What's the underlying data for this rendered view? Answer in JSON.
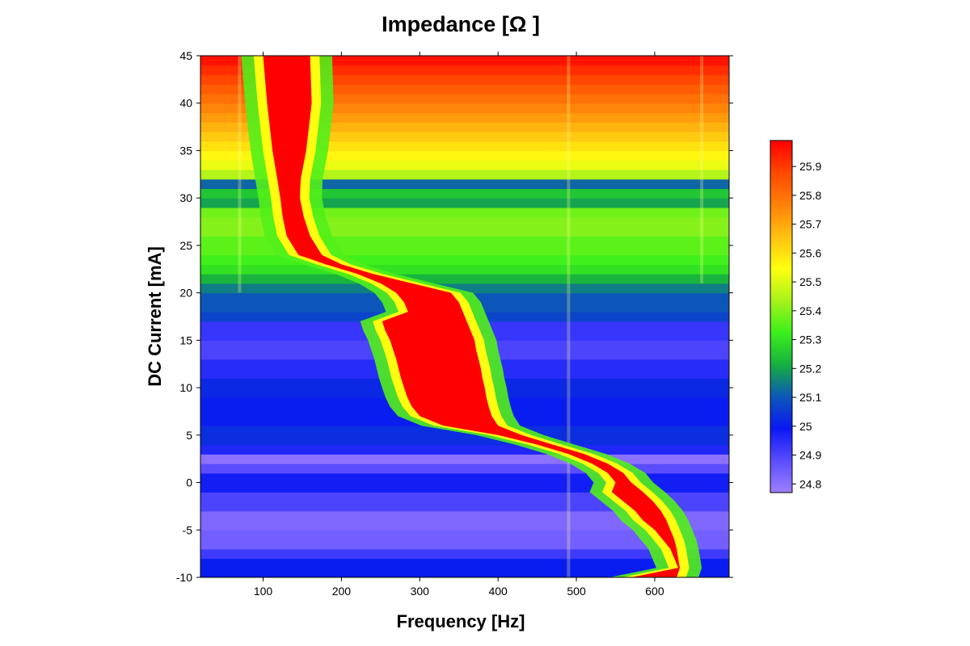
{
  "chart_data": {
    "type": "heatmap",
    "title": "Impedance [Ω ]",
    "xlabel": "Frequency [Hz]",
    "ylabel": "DC Current [mA]",
    "xlim": [
      20,
      695
    ],
    "ylim": [
      -10,
      45
    ],
    "xticks": [
      100,
      200,
      300,
      400,
      500,
      600
    ],
    "yticks": [
      -10,
      -5,
      0,
      5,
      10,
      15,
      20,
      25,
      30,
      35,
      40,
      45
    ],
    "colorbar": {
      "ticks": [
        24.8,
        24.9,
        25,
        25.1,
        25.2,
        25.3,
        25.4,
        25.5,
        25.6,
        25.7,
        25.8,
        25.9
      ],
      "min": 24.77,
      "max": 25.99,
      "colors": [
        "#9f7fff",
        "#5a4dff",
        "#0a18f4",
        "#0c58b8",
        "#16b040",
        "#3af01a",
        "#a8f21a",
        "#ffff10",
        "#ffc010",
        "#ff8008",
        "#ff4800",
        "#ff0000"
      ]
    },
    "background_levels": [
      [
        -10,
        -8,
        25.0
      ],
      [
        -8,
        -7,
        24.92
      ],
      [
        -7,
        -5,
        24.84
      ],
      [
        -5,
        -3,
        24.82
      ],
      [
        -3,
        -1,
        24.9
      ],
      [
        -1,
        1,
        24.98
      ],
      [
        1,
        2,
        24.88
      ],
      [
        2,
        3,
        24.8
      ],
      [
        3,
        4,
        24.96
      ],
      [
        4,
        6,
        25.03
      ],
      [
        6,
        9,
        25.0
      ],
      [
        9,
        11,
        25.02
      ],
      [
        11,
        13,
        24.95
      ],
      [
        13,
        15,
        24.9
      ],
      [
        15,
        17,
        24.93
      ],
      [
        17,
        18,
        25.07
      ],
      [
        18,
        20,
        25.1
      ],
      [
        20,
        21,
        25.15
      ],
      [
        21,
        22,
        25.22
      ],
      [
        22,
        23,
        25.3
      ],
      [
        23,
        24,
        25.33
      ],
      [
        24,
        26,
        25.36
      ],
      [
        26,
        28,
        25.4
      ],
      [
        28,
        29,
        25.38
      ],
      [
        29,
        30,
        25.2
      ],
      [
        30,
        31,
        25.25
      ],
      [
        31,
        32,
        25.12
      ],
      [
        32,
        33,
        25.45
      ],
      [
        33,
        34,
        25.52
      ],
      [
        34,
        35,
        25.56
      ],
      [
        35,
        36,
        25.6
      ],
      [
        36,
        37,
        25.64
      ],
      [
        37,
        38,
        25.68
      ],
      [
        38,
        39,
        25.72
      ],
      [
        39,
        40,
        25.76
      ],
      [
        40,
        41,
        25.8
      ],
      [
        41,
        42,
        25.84
      ],
      [
        42,
        43,
        25.88
      ],
      [
        43,
        44,
        25.92
      ],
      [
        44,
        45,
        25.96
      ]
    ],
    "resonance_ridge": {
      "current": [
        45,
        40,
        35,
        32,
        30,
        28,
        26,
        24,
        23,
        22,
        21,
        20,
        19,
        18,
        17,
        16,
        15,
        14,
        13,
        12,
        11,
        10,
        9,
        8,
        7,
        6,
        5,
        4,
        3,
        2,
        1,
        0,
        -1,
        -2,
        -3,
        -4,
        -5,
        -6,
        -7,
        -8,
        -9,
        -10
      ],
      "left_frequency": [
        100,
        105,
        112,
        118,
        122,
        125,
        130,
        145,
        180,
        220,
        250,
        270,
        280,
        285,
        252,
        256,
        262,
        266,
        270,
        273,
        276,
        280,
        284,
        290,
        300,
        330,
        400,
        450,
        490,
        520,
        540,
        550,
        545,
        560,
        575,
        585,
        600,
        610,
        620,
        625,
        630,
        570
      ],
      "right_frequency": [
        160,
        162,
        155,
        148,
        147,
        152,
        160,
        175,
        200,
        240,
        290,
        340,
        350,
        355,
        360,
        365,
        370,
        372,
        375,
        378,
        380,
        383,
        385,
        388,
        392,
        400,
        430,
        470,
        510,
        540,
        560,
        570,
        585,
        598,
        608,
        615,
        620,
        625,
        628,
        630,
        632,
        628
      ]
    },
    "vertical_lines": [
      {
        "x": 70,
        "from": 20,
        "to": 45
      },
      {
        "x": 490,
        "from": -10,
        "to": 45
      },
      {
        "x": 660,
        "from": 21,
        "to": 45
      }
    ]
  }
}
